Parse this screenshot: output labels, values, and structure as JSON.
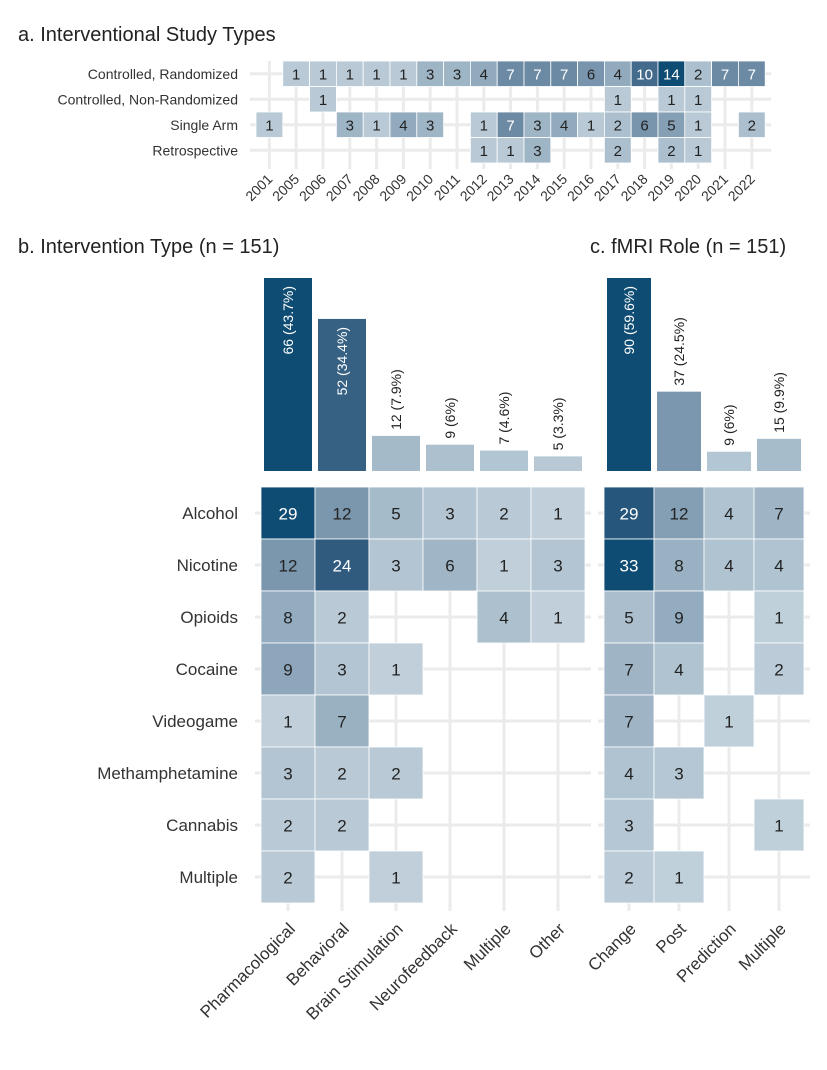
{
  "colors": {
    "scale": [
      "#c6d4de",
      "#a7bccb",
      "#89a3b8",
      "#6c8aa4",
      "#4e7291",
      "#2f5a7e",
      "#0f4c73"
    ],
    "grid": "#ebebeb",
    "text_dark": "#222222",
    "text_light": "#ffffff"
  },
  "chart_data": [
    {
      "type": "heatmap",
      "title": "a. Interventional Study Types",
      "x": [
        "2001",
        "2005",
        "2006",
        "2007",
        "2008",
        "2009",
        "2010",
        "2011",
        "2012",
        "2013",
        "2014",
        "2015",
        "2016",
        "2017",
        "2018",
        "2019",
        "2020",
        "2021",
        "2022"
      ],
      "y": [
        "Controlled, Randomized",
        "Controlled, Non-Randomized",
        "Single Arm",
        "Retrospective"
      ],
      "values": [
        [
          null,
          1,
          1,
          1,
          1,
          1,
          3,
          3,
          4,
          7,
          7,
          7,
          6,
          4,
          10,
          14,
          2,
          7,
          7
        ],
        [
          null,
          null,
          1,
          null,
          null,
          null,
          null,
          null,
          null,
          null,
          null,
          null,
          null,
          1,
          null,
          1,
          1,
          null,
          null
        ],
        [
          1,
          null,
          null,
          3,
          1,
          4,
          3,
          null,
          1,
          7,
          3,
          4,
          1,
          2,
          6,
          5,
          1,
          null,
          2
        ],
        [
          null,
          null,
          null,
          null,
          null,
          null,
          null,
          null,
          1,
          1,
          3,
          null,
          null,
          2,
          null,
          2,
          1,
          null,
          null
        ]
      ],
      "max": 14
    },
    {
      "type": "bar",
      "title": "b. Intervention Type (n = 151)",
      "categories": [
        "Pharmacological",
        "Behavioral",
        "Brain Stimulation",
        "Neurofeedback",
        "Multiple",
        "Other"
      ],
      "values": [
        66,
        52,
        12,
        9,
        7,
        5
      ],
      "labels": [
        "66 (43.7%)",
        "52 (34.4%)",
        "12 (7.9%)",
        "9 (6%)",
        "7 (4.6%)",
        "5 (3.3%)"
      ]
    },
    {
      "type": "heatmap",
      "title": "",
      "x": [
        "Pharmacological",
        "Behavioral",
        "Brain Stimulation",
        "Neurofeedback",
        "Multiple",
        "Other"
      ],
      "y": [
        "Alcohol",
        "Nicotine",
        "Opioids",
        "Cocaine",
        "Videogame",
        "Methamphetamine",
        "Cannabis",
        "Multiple"
      ],
      "values": [
        [
          29,
          12,
          5,
          3,
          2,
          1
        ],
        [
          12,
          24,
          3,
          6,
          1,
          3
        ],
        [
          8,
          2,
          null,
          null,
          4,
          1
        ],
        [
          9,
          3,
          1,
          null,
          null,
          null
        ],
        [
          1,
          7,
          null,
          null,
          null,
          null
        ],
        [
          3,
          2,
          2,
          null,
          null,
          null
        ],
        [
          2,
          2,
          null,
          null,
          null,
          null
        ],
        [
          2,
          null,
          1,
          null,
          null,
          null
        ]
      ]
    },
    {
      "type": "bar",
      "title": "c. fMRI Role (n = 151)",
      "categories": [
        "Change",
        "Post",
        "Prediction",
        "Multiple"
      ],
      "values": [
        90,
        37,
        9,
        15
      ],
      "labels": [
        "90 (59.6%)",
        "37 (24.5%)",
        "9 (6%)",
        "15 (9.9%)"
      ]
    },
    {
      "type": "heatmap",
      "title": "",
      "x": [
        "Change",
        "Post",
        "Prediction",
        "Multiple"
      ],
      "y": [
        "Alcohol",
        "Nicotine",
        "Opioids",
        "Cocaine",
        "Videogame",
        "Methamphetamine",
        "Cannabis",
        "Multiple"
      ],
      "values": [
        [
          29,
          12,
          4,
          7
        ],
        [
          33,
          8,
          4,
          4
        ],
        [
          5,
          9,
          null,
          1
        ],
        [
          7,
          4,
          null,
          2
        ],
        [
          7,
          null,
          1,
          null
        ],
        [
          4,
          3,
          null,
          null
        ],
        [
          3,
          null,
          null,
          1
        ],
        [
          2,
          1,
          null,
          null
        ]
      ]
    }
  ]
}
